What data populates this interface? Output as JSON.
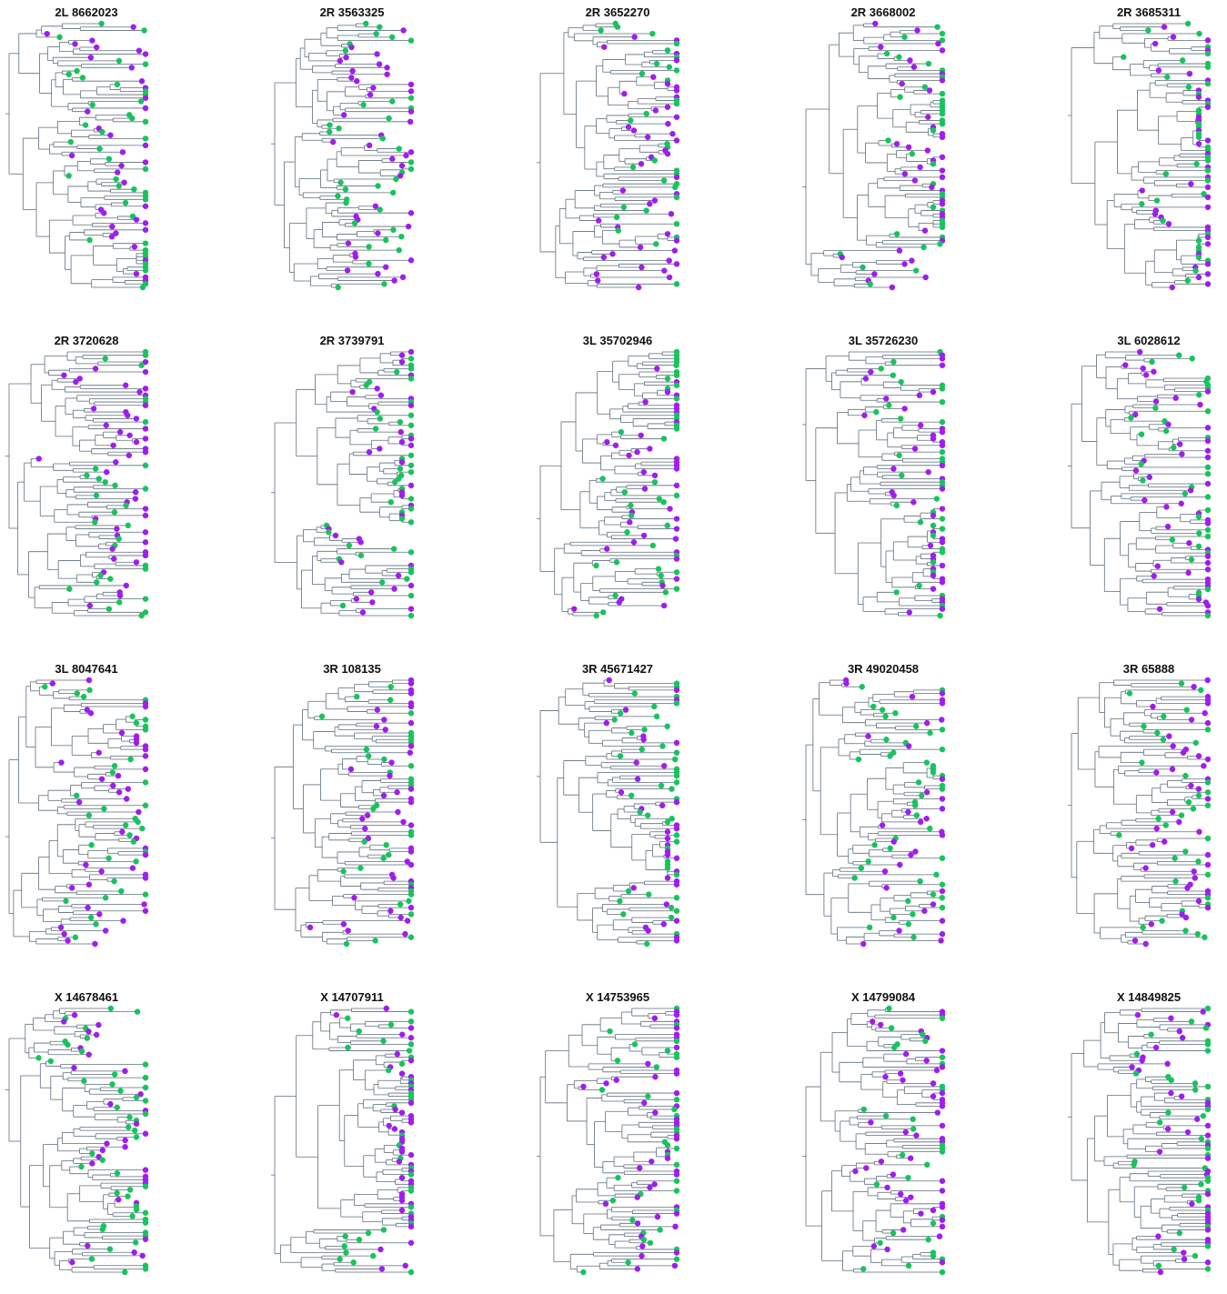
{
  "colors": {
    "branch": "#5f6e7d",
    "tip_purple": "#a01cf0",
    "tip_green": "#16c45c",
    "title": "#111111"
  },
  "panels": [
    {
      "title": "2L 8662023",
      "seed": 11
    },
    {
      "title": "2R 3563325",
      "seed": 23
    },
    {
      "title": "2R 3652270",
      "seed": 37
    },
    {
      "title": "2R 3668002",
      "seed": 41
    },
    {
      "title": "2R 3685311",
      "seed": 53
    },
    {
      "title": "2R 3720628",
      "seed": 67
    },
    {
      "title": "2R 3739791",
      "seed": 71
    },
    {
      "title": "3L 35702946",
      "seed": 83
    },
    {
      "title": "3L 35726230",
      "seed": 97
    },
    {
      "title": "3L 6028612",
      "seed": 101
    },
    {
      "title": "3L 8047641",
      "seed": 113
    },
    {
      "title": "3R 108135",
      "seed": 127
    },
    {
      "title": "3R 45671427",
      "seed": 131
    },
    {
      "title": "3R 49020458",
      "seed": 149
    },
    {
      "title": "3R 65888",
      "seed": 157
    },
    {
      "title": "X 14678461",
      "seed": 163
    },
    {
      "title": "X 14707911",
      "seed": 173
    },
    {
      "title": "X 14753965",
      "seed": 181
    },
    {
      "title": "X 14799084",
      "seed": 191
    },
    {
      "title": "X 14849825",
      "seed": 197
    }
  ]
}
